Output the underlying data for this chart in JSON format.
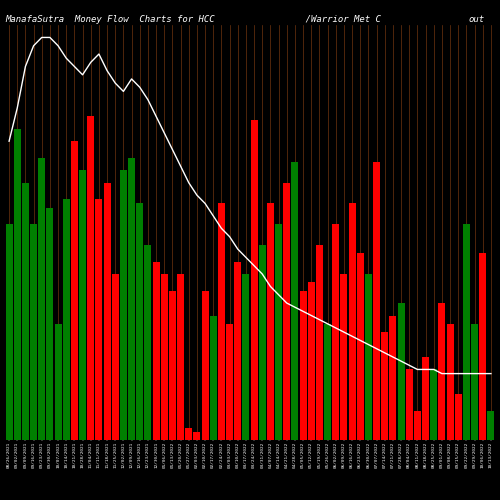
{
  "title_left": "ManafaSutra  Money Flow  Charts for HCC",
  "title_mid": "               /Warrior Met C",
  "title_right": "out",
  "bg_color": "#000000",
  "bar_colors": [
    "green",
    "green",
    "green",
    "green",
    "green",
    "green",
    "green",
    "green",
    "red",
    "green",
    "red",
    "red",
    "red",
    "red",
    "green",
    "green",
    "green",
    "green",
    "red",
    "red",
    "red",
    "red",
    "red",
    "red",
    "red",
    "green",
    "red",
    "red",
    "red",
    "green",
    "red",
    "green",
    "red",
    "green",
    "red",
    "green",
    "red",
    "red",
    "red",
    "green",
    "red",
    "red",
    "red",
    "red",
    "green",
    "red",
    "red",
    "red",
    "green",
    "red",
    "red",
    "red",
    "green",
    "red",
    "red",
    "red",
    "green",
    "green",
    "red",
    "green"
  ],
  "bar_heights": [
    52,
    75,
    62,
    52,
    68,
    56,
    28,
    58,
    72,
    65,
    78,
    58,
    62,
    40,
    65,
    68,
    57,
    47,
    43,
    40,
    36,
    40,
    3,
    2,
    36,
    30,
    57,
    28,
    43,
    40,
    77,
    47,
    57,
    52,
    62,
    67,
    36,
    38,
    47,
    28,
    52,
    40,
    57,
    45,
    40,
    67,
    26,
    30,
    33,
    17,
    7,
    20,
    17,
    33,
    28,
    11,
    52,
    28,
    45,
    7
  ],
  "price_line": [
    72,
    80,
    90,
    95,
    97,
    97,
    95,
    92,
    90,
    88,
    91,
    93,
    89,
    86,
    84,
    87,
    85,
    82,
    78,
    74,
    70,
    66,
    62,
    59,
    57,
    54,
    51,
    49,
    46,
    44,
    42,
    40,
    37,
    35,
    33,
    32,
    31,
    30,
    29,
    28,
    27,
    26,
    25,
    24,
    23,
    22,
    21,
    20,
    19,
    18,
    17,
    17,
    17,
    16,
    16,
    16,
    16,
    16,
    16,
    16
  ],
  "grid_color": "#7B3A10",
  "line_color": "#ffffff",
  "title_color": "#ffffff",
  "title_fontsize": 6.5,
  "bar_width": 0.85,
  "ylim_max": 100,
  "xlabel_fontsize": 3.2,
  "labels": [
    "08/26/2021",
    "09/02/2021",
    "09/09/2021",
    "09/16/2021",
    "09/23/2021",
    "09/30/2021",
    "10/07/2021",
    "10/14/2021",
    "10/21/2021",
    "10/28/2021",
    "11/04/2021",
    "11/11/2021",
    "11/18/2021",
    "11/25/2021",
    "12/02/2021",
    "12/09/2021",
    "12/16/2021",
    "12/23/2021",
    "12/30/2021",
    "01/06/2022",
    "01/13/2022",
    "01/20/2022",
    "01/27/2022",
    "02/03/2022",
    "02/10/2022",
    "02/17/2022",
    "02/24/2022",
    "03/03/2022",
    "03/10/2022",
    "03/17/2022",
    "03/24/2022",
    "03/31/2022",
    "04/07/2022",
    "04/14/2022",
    "04/21/2022",
    "04/28/2022",
    "05/05/2022",
    "05/12/2022",
    "05/19/2022",
    "05/26/2022",
    "06/02/2022",
    "06/09/2022",
    "06/16/2022",
    "06/23/2022",
    "06/30/2022",
    "07/07/2022",
    "07/14/2022",
    "07/21/2022",
    "07/28/2022",
    "08/04/2022",
    "08/11/2022",
    "08/18/2022",
    "08/25/2022",
    "09/01/2022",
    "09/08/2022",
    "09/15/2022",
    "09/22/2022",
    "09/29/2022",
    "10/06/2022",
    "10/13/2022"
  ]
}
